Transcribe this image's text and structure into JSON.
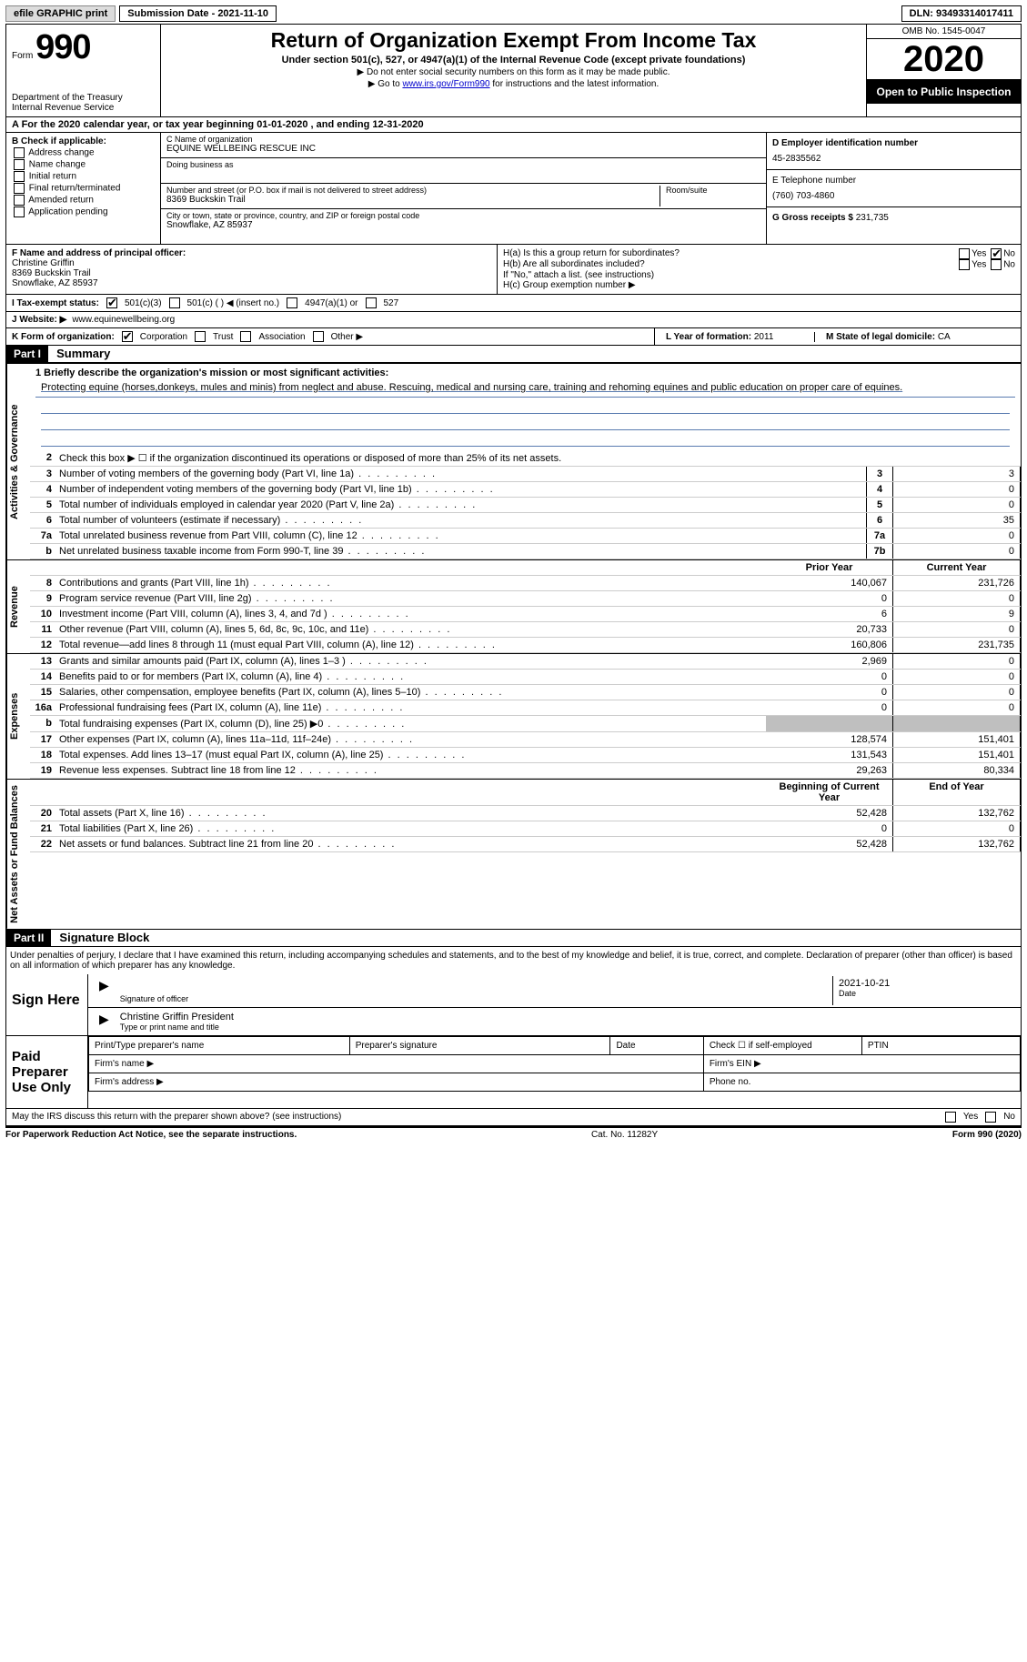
{
  "topbar": {
    "efile": "efile GRAPHIC print",
    "submission_label": "Submission Date - 2021-11-10",
    "dln": "DLN: 93493314017411"
  },
  "header": {
    "form_label": "Form",
    "form_num": "990",
    "dept": "Department of the Treasury Internal Revenue Service",
    "title": "Return of Organization Exempt From Income Tax",
    "subtitle": "Under section 501(c), 527, or 4947(a)(1) of the Internal Revenue Code (except private foundations)",
    "note1": "▶ Do not enter social security numbers on this form as it may be made public.",
    "note2_pre": "▶ Go to ",
    "note2_link": "www.irs.gov/Form990",
    "note2_post": " for instructions and the latest information.",
    "omb": "OMB No. 1545-0047",
    "year": "2020",
    "inspect": "Open to Public Inspection"
  },
  "period": "A For the 2020 calendar year, or tax year beginning 01-01-2020   , and ending 12-31-2020",
  "boxB": {
    "title": "B Check if applicable:",
    "opts": [
      "Address change",
      "Name change",
      "Initial return",
      "Final return/terminated",
      "Amended return",
      "Application pending"
    ]
  },
  "boxC": {
    "name_lbl": "C Name of organization",
    "name": "EQUINE WELLBEING RESCUE INC",
    "dba_lbl": "Doing business as",
    "addr_lbl": "Number and street (or P.O. box if mail is not delivered to street address)",
    "room_lbl": "Room/suite",
    "addr": "8369 Buckskin Trail",
    "city_lbl": "City or town, state or province, country, and ZIP or foreign postal code",
    "city": "Snowflake, AZ  85937"
  },
  "boxD": {
    "lbl": "D Employer identification number",
    "val": "45-2835562"
  },
  "boxE": {
    "lbl": "E Telephone number",
    "val": "(760) 703-4860"
  },
  "boxG": {
    "lbl": "G Gross receipts $",
    "val": "231,735"
  },
  "boxF": {
    "lbl": "F  Name and address of principal officer:",
    "name": "Christine Griffin",
    "addr1": "8369 Buckskin Trail",
    "addr2": "Snowflake, AZ  85937"
  },
  "boxH": {
    "a": "H(a)  Is this a group return for subordinates?",
    "b": "H(b)  Are all subordinates included?",
    "note": "If \"No,\" attach a list. (see instructions)",
    "c": "H(c)  Group exemption number ▶"
  },
  "rowI": {
    "lbl": "I   Tax-exempt status:",
    "o1": "501(c)(3)",
    "o2": "501(c) (  ) ◀ (insert no.)",
    "o3": "4947(a)(1) or",
    "o4": "527"
  },
  "rowJ": {
    "lbl": "J   Website: ▶",
    "val": "www.equinewellbeing.org"
  },
  "rowK": {
    "lbl": "K Form of organization:",
    "o1": "Corporation",
    "o2": "Trust",
    "o3": "Association",
    "o4": "Other ▶"
  },
  "rowL": {
    "year_lbl": "L Year of formation:",
    "year": "2011",
    "state_lbl": "M State of legal domicile:",
    "state": "CA"
  },
  "part1": {
    "hdr": "Part I",
    "title": "Summary"
  },
  "mission": {
    "lbl": "1   Briefly describe the organization's mission or most significant activities:",
    "text": "Protecting equine (horses,donkeys, mules and minis) from neglect and abuse. Rescuing, medical and nursing care, training and rehoming equines and public education on proper care of equines."
  },
  "line2": "Check this box ▶ ☐ if the organization discontinued its operations or disposed of more than 25% of its net assets.",
  "gov_lines": [
    {
      "n": "3",
      "d": "Number of voting members of the governing body (Part VI, line 1a)",
      "b": "3",
      "v": "3"
    },
    {
      "n": "4",
      "d": "Number of independent voting members of the governing body (Part VI, line 1b)",
      "b": "4",
      "v": "0"
    },
    {
      "n": "5",
      "d": "Total number of individuals employed in calendar year 2020 (Part V, line 2a)",
      "b": "5",
      "v": "0"
    },
    {
      "n": "6",
      "d": "Total number of volunteers (estimate if necessary)",
      "b": "6",
      "v": "35"
    },
    {
      "n": "7a",
      "d": "Total unrelated business revenue from Part VIII, column (C), line 12",
      "b": "7a",
      "v": "0"
    },
    {
      "n": "b",
      "d": "Net unrelated business taxable income from Form 990-T, line 39",
      "b": "7b",
      "v": "0"
    }
  ],
  "rev_hdr": {
    "prior": "Prior Year",
    "current": "Current Year"
  },
  "rev_lines": [
    {
      "n": "8",
      "d": "Contributions and grants (Part VIII, line 1h)",
      "p": "140,067",
      "c": "231,726"
    },
    {
      "n": "9",
      "d": "Program service revenue (Part VIII, line 2g)",
      "p": "0",
      "c": "0"
    },
    {
      "n": "10",
      "d": "Investment income (Part VIII, column (A), lines 3, 4, and 7d )",
      "p": "6",
      "c": "9"
    },
    {
      "n": "11",
      "d": "Other revenue (Part VIII, column (A), lines 5, 6d, 8c, 9c, 10c, and 11e)",
      "p": "20,733",
      "c": "0"
    },
    {
      "n": "12",
      "d": "Total revenue—add lines 8 through 11 (must equal Part VIII, column (A), line 12)",
      "p": "160,806",
      "c": "231,735"
    }
  ],
  "exp_lines": [
    {
      "n": "13",
      "d": "Grants and similar amounts paid (Part IX, column (A), lines 1–3 )",
      "p": "2,969",
      "c": "0"
    },
    {
      "n": "14",
      "d": "Benefits paid to or for members (Part IX, column (A), line 4)",
      "p": "0",
      "c": "0"
    },
    {
      "n": "15",
      "d": "Salaries, other compensation, employee benefits (Part IX, column (A), lines 5–10)",
      "p": "0",
      "c": "0"
    },
    {
      "n": "16a",
      "d": "Professional fundraising fees (Part IX, column (A), line 11e)",
      "p": "0",
      "c": "0"
    },
    {
      "n": "b",
      "d": "Total fundraising expenses (Part IX, column (D), line 25) ▶0",
      "p": "",
      "c": "",
      "shade": true
    },
    {
      "n": "17",
      "d": "Other expenses (Part IX, column (A), lines 11a–11d, 11f–24e)",
      "p": "128,574",
      "c": "151,401"
    },
    {
      "n": "18",
      "d": "Total expenses. Add lines 13–17 (must equal Part IX, column (A), line 25)",
      "p": "131,543",
      "c": "151,401"
    },
    {
      "n": "19",
      "d": "Revenue less expenses. Subtract line 18 from line 12",
      "p": "29,263",
      "c": "80,334"
    }
  ],
  "net_hdr": {
    "begin": "Beginning of Current Year",
    "end": "End of Year"
  },
  "net_lines": [
    {
      "n": "20",
      "d": "Total assets (Part X, line 16)",
      "p": "52,428",
      "c": "132,762"
    },
    {
      "n": "21",
      "d": "Total liabilities (Part X, line 26)",
      "p": "0",
      "c": "0"
    },
    {
      "n": "22",
      "d": "Net assets or fund balances. Subtract line 21 from line 20",
      "p": "52,428",
      "c": "132,762"
    }
  ],
  "part2": {
    "hdr": "Part II",
    "title": "Signature Block"
  },
  "sig_decl": "Under penalties of perjury, I declare that I have examined this return, including accompanying schedules and statements, and to the best of my knowledge and belief, it is true, correct, and complete. Declaration of preparer (other than officer) is based on all information of which preparer has any knowledge.",
  "sign": {
    "here": "Sign Here",
    "officer_lbl": "Signature of officer",
    "date_lbl": "Date",
    "date": "2021-10-21",
    "name": "Christine Griffin  President",
    "type_lbl": "Type or print name and title"
  },
  "prep": {
    "title": "Paid Preparer Use Only",
    "c1": "Print/Type preparer's name",
    "c2": "Preparer's signature",
    "c3": "Date",
    "c4": "Check ☐ if self-employed",
    "c5": "PTIN",
    "firm_name": "Firm's name   ▶",
    "firm_ein": "Firm's EIN ▶",
    "firm_addr": "Firm's address ▶",
    "phone": "Phone no."
  },
  "discuss": "May the IRS discuss this return with the preparer shown above? (see instructions)",
  "footer": {
    "left": "For Paperwork Reduction Act Notice, see the separate instructions.",
    "mid": "Cat. No. 11282Y",
    "right": "Form 990 (2020)"
  },
  "yn": {
    "yes": "Yes",
    "no": "No"
  },
  "vtabs": {
    "gov": "Activities & Governance",
    "rev": "Revenue",
    "exp": "Expenses",
    "net": "Net Assets or Fund Balances"
  }
}
